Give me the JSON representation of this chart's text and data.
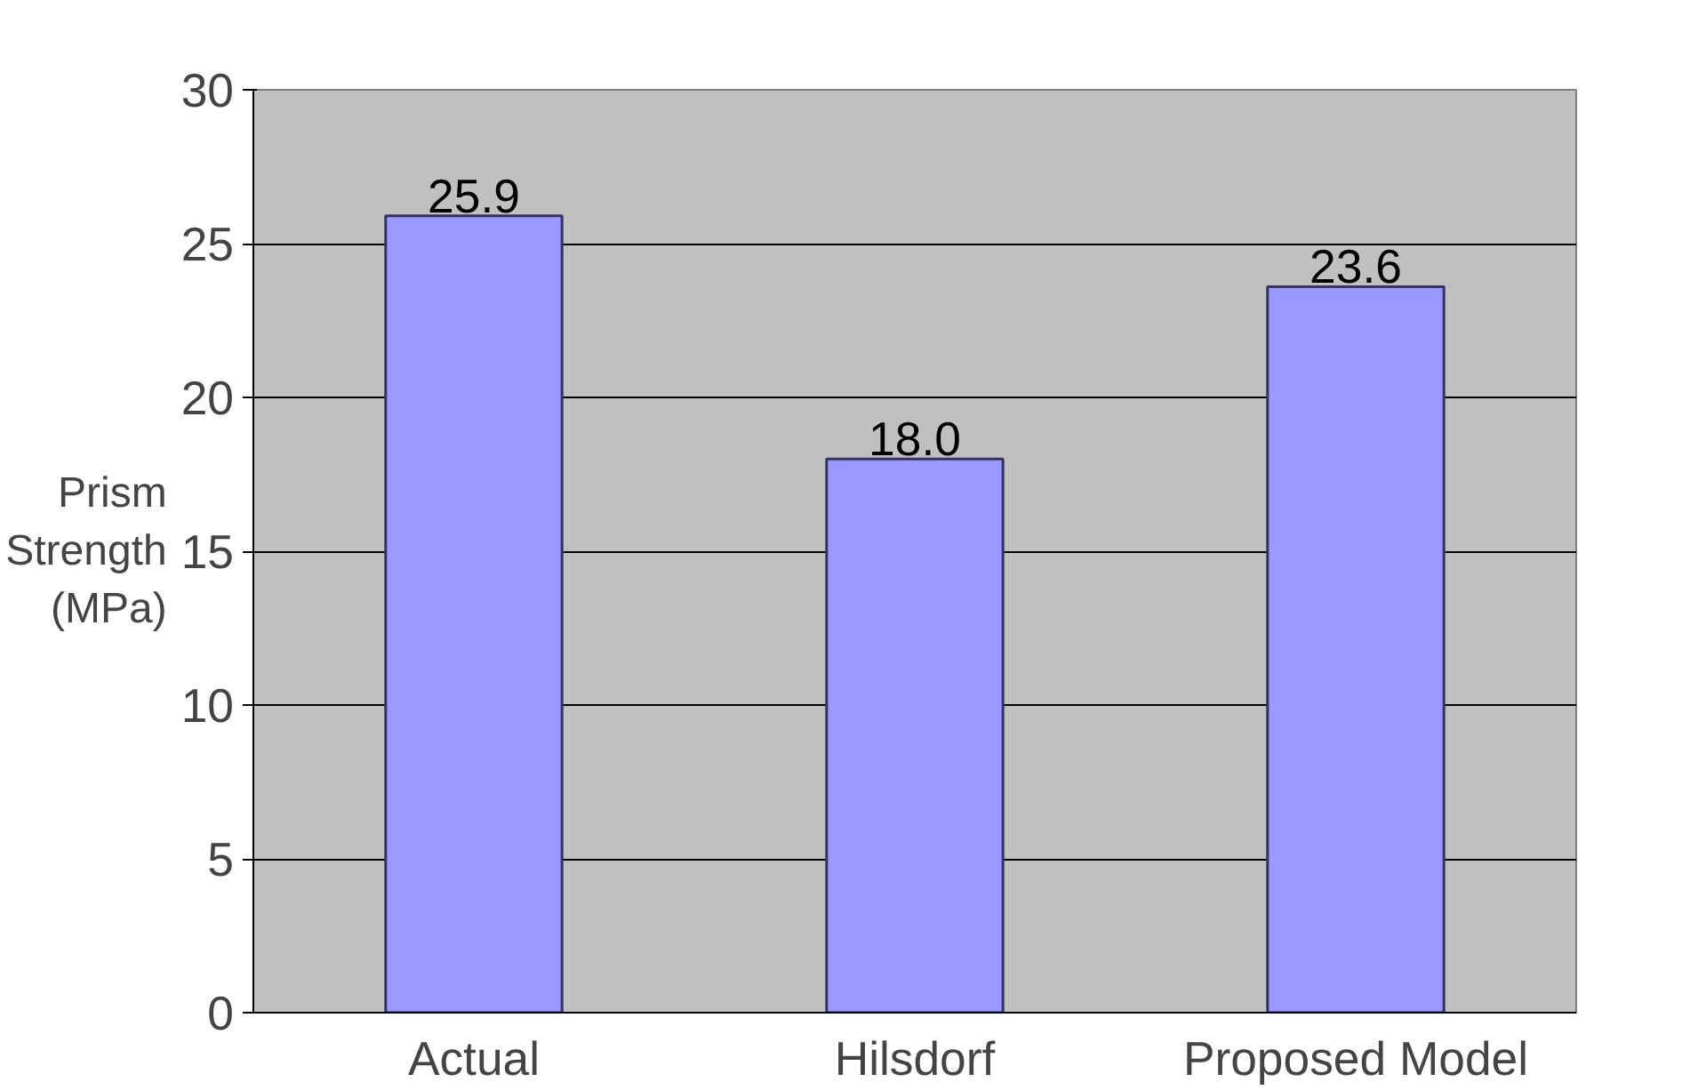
{
  "chart_data": {
    "type": "bar",
    "ylabel": "Prism Strength (MPa)",
    "categories": [
      "Actual",
      "Hilsdorf",
      "Proposed Model"
    ],
    "values": [
      25.9,
      18.0,
      23.6
    ],
    "color": "#9999ff",
    "value_labels": [
      "25.9",
      "18.0",
      "23.6"
    ],
    "ylim": [
      0,
      30
    ],
    "yticks": [
      0,
      5,
      10,
      15,
      20,
      25,
      30
    ],
    "grid": "y"
  }
}
